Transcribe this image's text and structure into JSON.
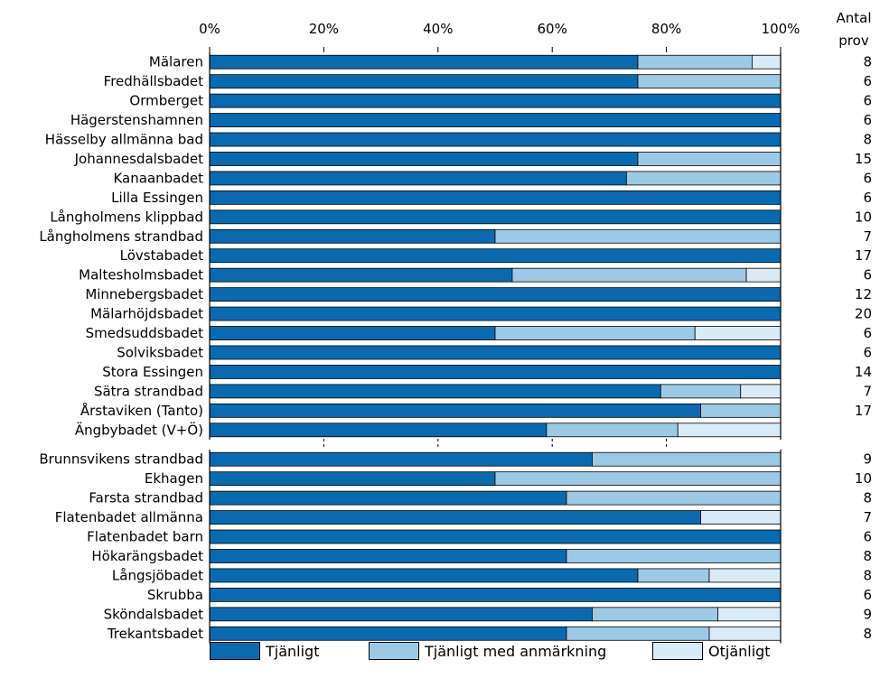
{
  "colors": {
    "tjanligt": "#0a6ab0",
    "anmarkning": "#9ccae6",
    "otjanligt": "#d9ebf7"
  },
  "header": {
    "count_label_line1": "Antal",
    "count_label_line2": "prov"
  },
  "legend": [
    {
      "label": "Tjänligt",
      "color_key": "tjanligt"
    },
    {
      "label": "Tjänligt med anmärkning",
      "color_key": "anmarkning"
    },
    {
      "label": "Otjänligt",
      "color_key": "otjanligt"
    }
  ],
  "chart_data": {
    "type": "bar",
    "orientation": "horizontal",
    "stacked": "percent",
    "xlim": [
      0,
      100
    ],
    "x_ticks": [
      "0%",
      "20%",
      "40%",
      "60%",
      "80%",
      "100%"
    ],
    "grid": "vertical dashed (second group)",
    "legend_position": "bottom",
    "series": [
      {
        "name": "Tjänligt"
      },
      {
        "name": "Tjänligt med anmärkning"
      },
      {
        "name": "Otjänligt"
      }
    ],
    "groups": [
      {
        "rows": [
          {
            "category": "Mälaren",
            "values": [
              75,
              20,
              5
            ],
            "n": "8"
          },
          {
            "category": "Fredhällsbadet",
            "values": [
              75,
              25,
              0
            ],
            "n": "6"
          },
          {
            "category": "Ormberget",
            "values": [
              100,
              0,
              0
            ],
            "n": "6"
          },
          {
            "category": "Hägerstenshamnen",
            "values": [
              100,
              0,
              0
            ],
            "n": "6"
          },
          {
            "category": "Hässelby allmänna bad",
            "values": [
              100,
              0,
              0
            ],
            "n": "8"
          },
          {
            "category": "Johannesdalsbadet",
            "values": [
              75,
              25,
              0
            ],
            "n": "15"
          },
          {
            "category": "Kanaanbadet",
            "values": [
              73,
              27,
              0
            ],
            "n": "6"
          },
          {
            "category": "Lilla Essingen",
            "values": [
              100,
              0,
              0
            ],
            "n": "6"
          },
          {
            "category": "Långholmens klippbad",
            "values": [
              100,
              0,
              0
            ],
            "n": "10"
          },
          {
            "category": "Långholmens strandbad",
            "values": [
              50,
              50,
              0
            ],
            "n": "7"
          },
          {
            "category": "Lövstabadet",
            "values": [
              100,
              0,
              0
            ],
            "n": "17"
          },
          {
            "category": "Maltesholmsbadet",
            "values": [
              53,
              41,
              6
            ],
            "n": "6"
          },
          {
            "category": "Minnebergsbadet",
            "values": [
              100,
              0,
              0
            ],
            "n": "12"
          },
          {
            "category": "Mälarhöjdsbadet",
            "values": [
              100,
              0,
              0
            ],
            "n": "20"
          },
          {
            "category": "Smedsuddsbadet",
            "values": [
              50,
              35,
              15
            ],
            "n": "6"
          },
          {
            "category": "Solviksbadet",
            "values": [
              100,
              0,
              0
            ],
            "n": "6"
          },
          {
            "category": "Stora Essingen",
            "values": [
              100,
              0,
              0
            ],
            "n": "14"
          },
          {
            "category": "Sätra strandbad",
            "values": [
              79,
              14,
              7
            ],
            "n": "7"
          },
          {
            "category": "Årstaviken (Tanto)",
            "values": [
              86,
              14,
              0
            ],
            "n": "17"
          },
          {
            "category": "Ängbybadet (V+Ö)",
            "values": [
              59,
              23,
              18
            ],
            "n": ""
          }
        ]
      },
      {
        "rows": [
          {
            "category": "Brunnsvikens strandbad",
            "values": [
              67,
              33,
              0
            ],
            "n": "9"
          },
          {
            "category": "Ekhagen",
            "values": [
              50,
              50,
              0
            ],
            "n": "10"
          },
          {
            "category": "Farsta strandbad",
            "values": [
              62.5,
              37.5,
              0
            ],
            "n": "8"
          },
          {
            "category": "Flatenbadet allmänna",
            "values": [
              86,
              0,
              14
            ],
            "n": "7"
          },
          {
            "category": "Flatenbadet barn",
            "values": [
              100,
              0,
              0
            ],
            "n": "6"
          },
          {
            "category": "Hökarängsbadet",
            "values": [
              62.5,
              37.5,
              0
            ],
            "n": "8"
          },
          {
            "category": "Långsjöbadet",
            "values": [
              75,
              12.5,
              12.5
            ],
            "n": "8"
          },
          {
            "category": "Skrubba",
            "values": [
              100,
              0,
              0
            ],
            "n": "6"
          },
          {
            "category": "Sköndalsbadet",
            "values": [
              67,
              22,
              11
            ],
            "n": "9"
          },
          {
            "category": "Trekantsbadet",
            "values": [
              62.5,
              25,
              12.5
            ],
            "n": "8"
          }
        ]
      }
    ]
  }
}
